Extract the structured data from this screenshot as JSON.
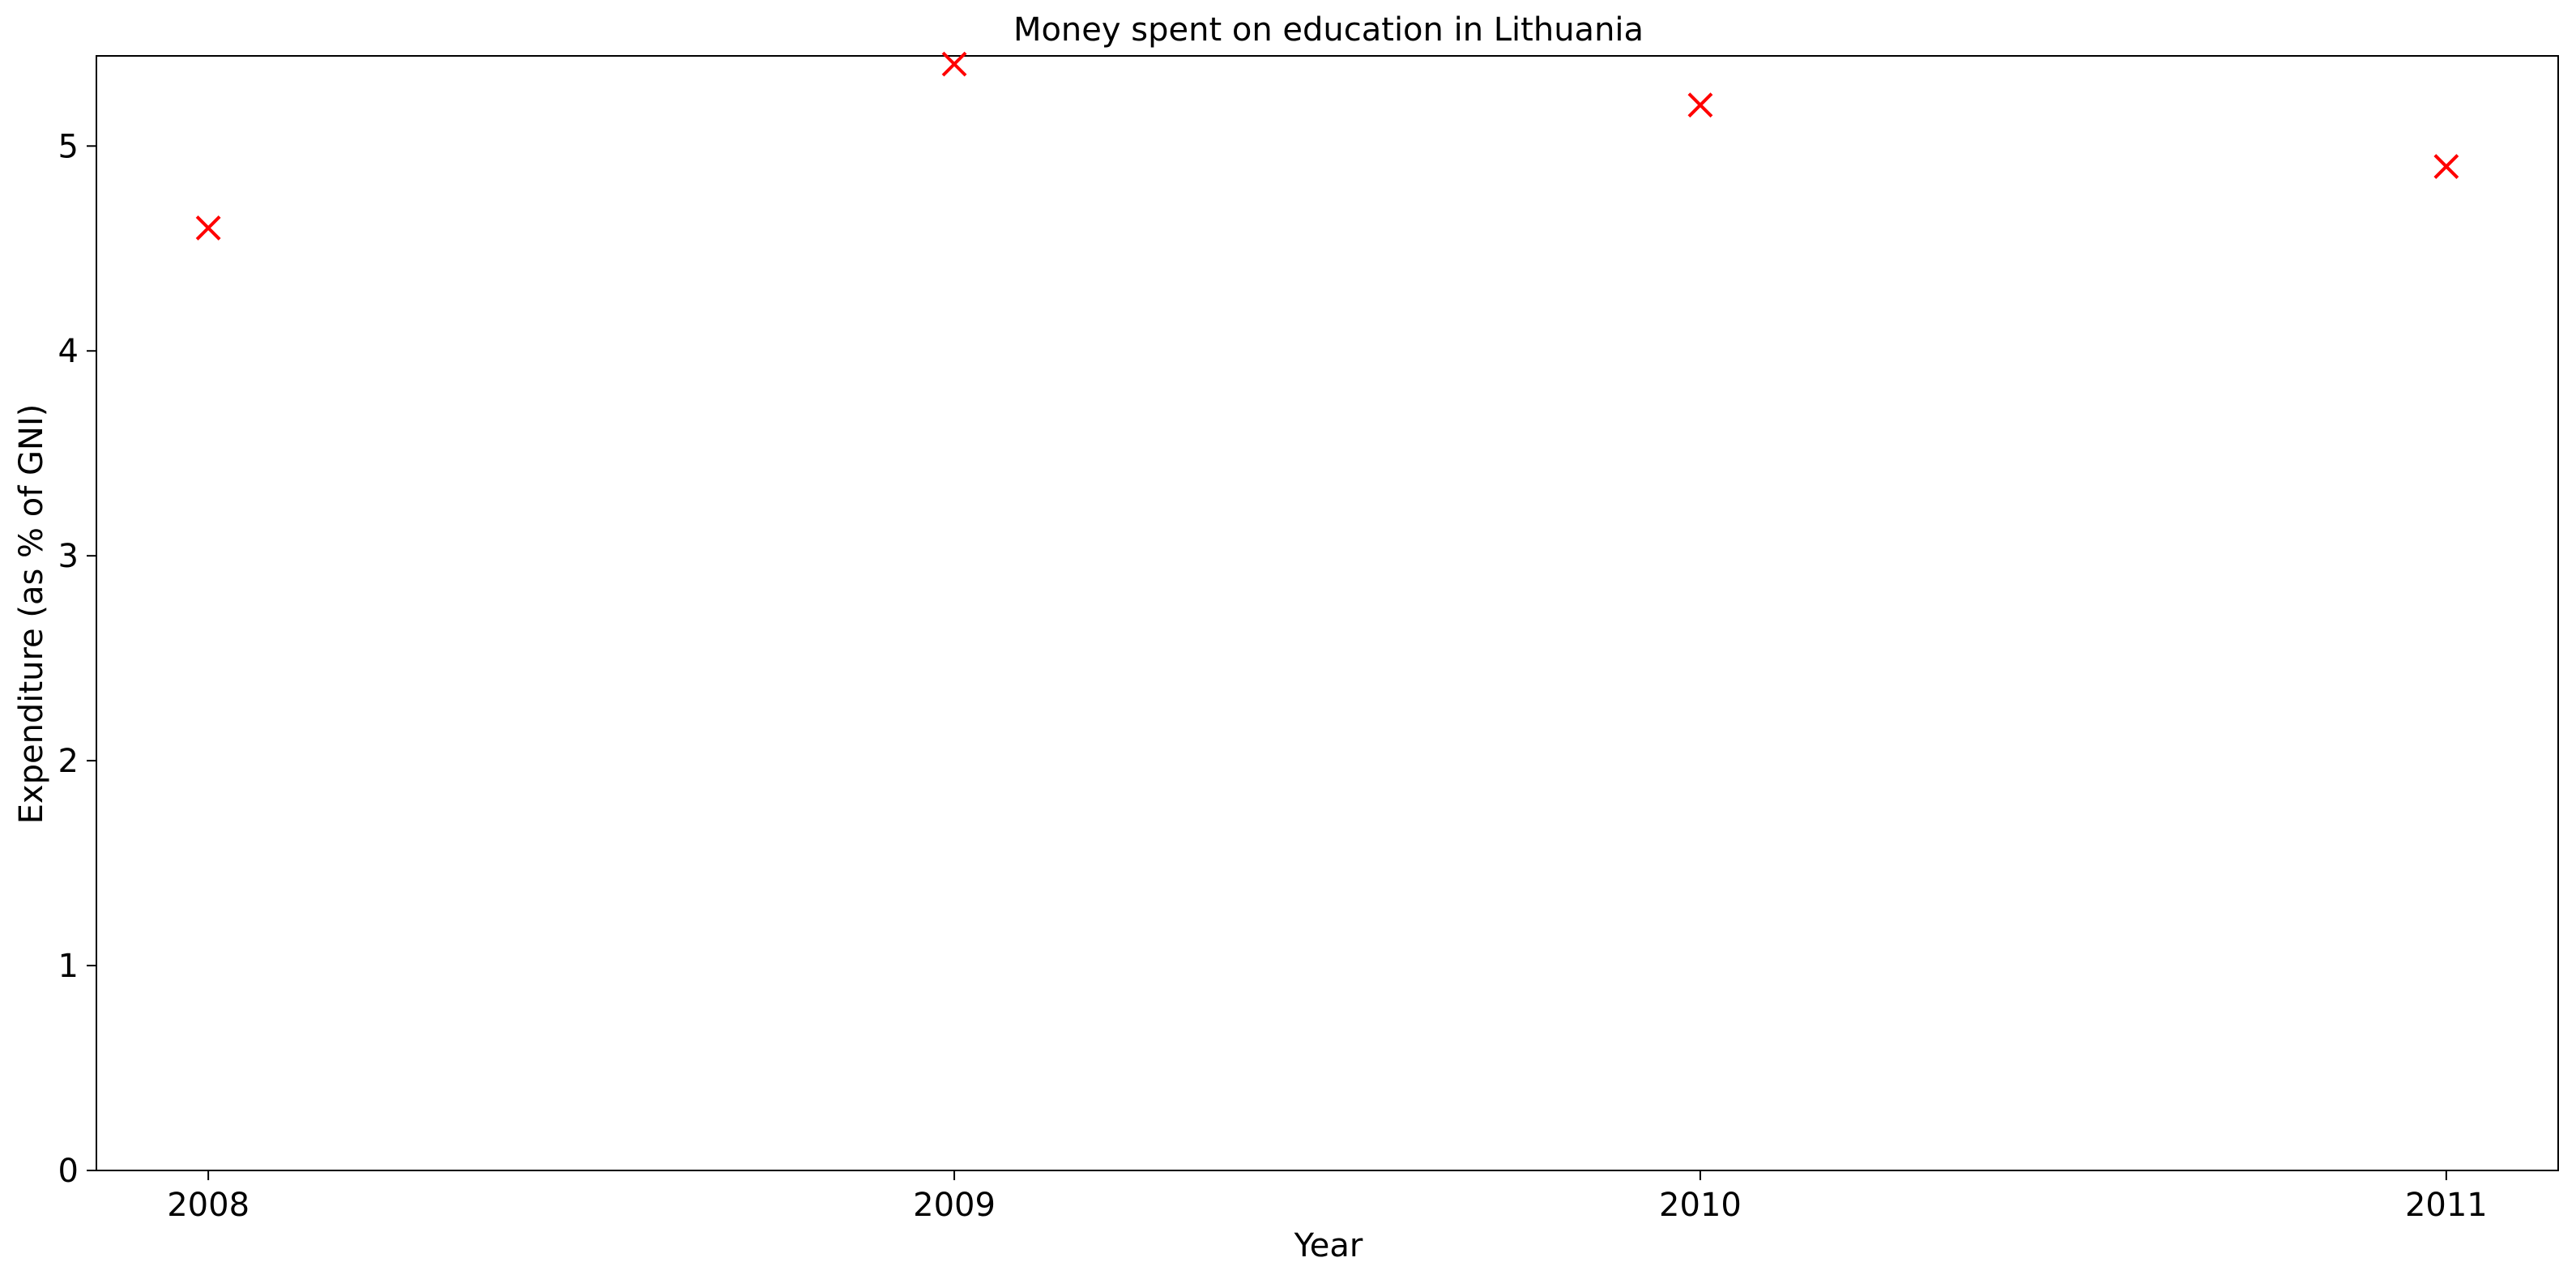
{
  "chart_data": {
    "type": "scatter",
    "title": "Money spent on education in Lithuania",
    "xlabel": "Year",
    "ylabel": "Expenditure (as % of GNI)",
    "x": [
      2008,
      2009,
      2010,
      2011
    ],
    "x_tick_labels": [
      "2008",
      "2009",
      "2010",
      "2011"
    ],
    "y_ticks": [
      0,
      1,
      2,
      3,
      4,
      5
    ],
    "y_tick_labels": [
      "0",
      "1",
      "2",
      "3",
      "4",
      "5"
    ],
    "xlim": [
      2007.85,
      2011.15
    ],
    "ylim": [
      0,
      5.44
    ],
    "series": [
      {
        "values": [
          4.6,
          5.4,
          5.2,
          4.9
        ],
        "marker": "x",
        "color": "#ff0000"
      }
    ],
    "grid": false,
    "legend": "none"
  }
}
